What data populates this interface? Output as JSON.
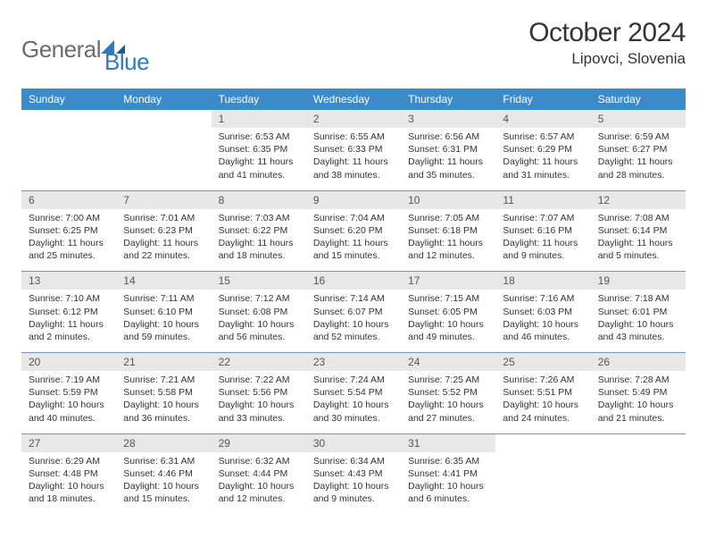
{
  "brand": {
    "left": "General",
    "right": "Blue"
  },
  "title": "October 2024",
  "location": "Lipovci, Slovenia",
  "colors": {
    "header_bg": "#3b8bc8",
    "header_fg": "#ffffff",
    "daynum_bg": "#e8e8e8",
    "week_sep": "#6b9bc8",
    "logo_gray": "#6b6b6b",
    "logo_blue": "#2b7cc0",
    "text": "#333333",
    "page_bg": "#ffffff"
  },
  "typography": {
    "title_fontsize": 30,
    "location_fontsize": 17,
    "dow_fontsize": 12,
    "daynum_fontsize": 12,
    "detail_fontsize": 10.5,
    "logo_fontsize": 26,
    "family": "Arial"
  },
  "layout": {
    "columns": 7,
    "rows": 5,
    "first_weekday": "Sunday"
  },
  "days_of_week": [
    "Sunday",
    "Monday",
    "Tuesday",
    "Wednesday",
    "Thursday",
    "Friday",
    "Saturday"
  ],
  "weeks": [
    [
      null,
      null,
      {
        "n": "1",
        "sr": "Sunrise: 6:53 AM",
        "ss": "Sunset: 6:35 PM",
        "dl": "Daylight: 11 hours and 41 minutes."
      },
      {
        "n": "2",
        "sr": "Sunrise: 6:55 AM",
        "ss": "Sunset: 6:33 PM",
        "dl": "Daylight: 11 hours and 38 minutes."
      },
      {
        "n": "3",
        "sr": "Sunrise: 6:56 AM",
        "ss": "Sunset: 6:31 PM",
        "dl": "Daylight: 11 hours and 35 minutes."
      },
      {
        "n": "4",
        "sr": "Sunrise: 6:57 AM",
        "ss": "Sunset: 6:29 PM",
        "dl": "Daylight: 11 hours and 31 minutes."
      },
      {
        "n": "5",
        "sr": "Sunrise: 6:59 AM",
        "ss": "Sunset: 6:27 PM",
        "dl": "Daylight: 11 hours and 28 minutes."
      }
    ],
    [
      {
        "n": "6",
        "sr": "Sunrise: 7:00 AM",
        "ss": "Sunset: 6:25 PM",
        "dl": "Daylight: 11 hours and 25 minutes."
      },
      {
        "n": "7",
        "sr": "Sunrise: 7:01 AM",
        "ss": "Sunset: 6:23 PM",
        "dl": "Daylight: 11 hours and 22 minutes."
      },
      {
        "n": "8",
        "sr": "Sunrise: 7:03 AM",
        "ss": "Sunset: 6:22 PM",
        "dl": "Daylight: 11 hours and 18 minutes."
      },
      {
        "n": "9",
        "sr": "Sunrise: 7:04 AM",
        "ss": "Sunset: 6:20 PM",
        "dl": "Daylight: 11 hours and 15 minutes."
      },
      {
        "n": "10",
        "sr": "Sunrise: 7:05 AM",
        "ss": "Sunset: 6:18 PM",
        "dl": "Daylight: 11 hours and 12 minutes."
      },
      {
        "n": "11",
        "sr": "Sunrise: 7:07 AM",
        "ss": "Sunset: 6:16 PM",
        "dl": "Daylight: 11 hours and 9 minutes."
      },
      {
        "n": "12",
        "sr": "Sunrise: 7:08 AM",
        "ss": "Sunset: 6:14 PM",
        "dl": "Daylight: 11 hours and 5 minutes."
      }
    ],
    [
      {
        "n": "13",
        "sr": "Sunrise: 7:10 AM",
        "ss": "Sunset: 6:12 PM",
        "dl": "Daylight: 11 hours and 2 minutes."
      },
      {
        "n": "14",
        "sr": "Sunrise: 7:11 AM",
        "ss": "Sunset: 6:10 PM",
        "dl": "Daylight: 10 hours and 59 minutes."
      },
      {
        "n": "15",
        "sr": "Sunrise: 7:12 AM",
        "ss": "Sunset: 6:08 PM",
        "dl": "Daylight: 10 hours and 56 minutes."
      },
      {
        "n": "16",
        "sr": "Sunrise: 7:14 AM",
        "ss": "Sunset: 6:07 PM",
        "dl": "Daylight: 10 hours and 52 minutes."
      },
      {
        "n": "17",
        "sr": "Sunrise: 7:15 AM",
        "ss": "Sunset: 6:05 PM",
        "dl": "Daylight: 10 hours and 49 minutes."
      },
      {
        "n": "18",
        "sr": "Sunrise: 7:16 AM",
        "ss": "Sunset: 6:03 PM",
        "dl": "Daylight: 10 hours and 46 minutes."
      },
      {
        "n": "19",
        "sr": "Sunrise: 7:18 AM",
        "ss": "Sunset: 6:01 PM",
        "dl": "Daylight: 10 hours and 43 minutes."
      }
    ],
    [
      {
        "n": "20",
        "sr": "Sunrise: 7:19 AM",
        "ss": "Sunset: 5:59 PM",
        "dl": "Daylight: 10 hours and 40 minutes."
      },
      {
        "n": "21",
        "sr": "Sunrise: 7:21 AM",
        "ss": "Sunset: 5:58 PM",
        "dl": "Daylight: 10 hours and 36 minutes."
      },
      {
        "n": "22",
        "sr": "Sunrise: 7:22 AM",
        "ss": "Sunset: 5:56 PM",
        "dl": "Daylight: 10 hours and 33 minutes."
      },
      {
        "n": "23",
        "sr": "Sunrise: 7:24 AM",
        "ss": "Sunset: 5:54 PM",
        "dl": "Daylight: 10 hours and 30 minutes."
      },
      {
        "n": "24",
        "sr": "Sunrise: 7:25 AM",
        "ss": "Sunset: 5:52 PM",
        "dl": "Daylight: 10 hours and 27 minutes."
      },
      {
        "n": "25",
        "sr": "Sunrise: 7:26 AM",
        "ss": "Sunset: 5:51 PM",
        "dl": "Daylight: 10 hours and 24 minutes."
      },
      {
        "n": "26",
        "sr": "Sunrise: 7:28 AM",
        "ss": "Sunset: 5:49 PM",
        "dl": "Daylight: 10 hours and 21 minutes."
      }
    ],
    [
      {
        "n": "27",
        "sr": "Sunrise: 6:29 AM",
        "ss": "Sunset: 4:48 PM",
        "dl": "Daylight: 10 hours and 18 minutes."
      },
      {
        "n": "28",
        "sr": "Sunrise: 6:31 AM",
        "ss": "Sunset: 4:46 PM",
        "dl": "Daylight: 10 hours and 15 minutes."
      },
      {
        "n": "29",
        "sr": "Sunrise: 6:32 AM",
        "ss": "Sunset: 4:44 PM",
        "dl": "Daylight: 10 hours and 12 minutes."
      },
      {
        "n": "30",
        "sr": "Sunrise: 6:34 AM",
        "ss": "Sunset: 4:43 PM",
        "dl": "Daylight: 10 hours and 9 minutes."
      },
      {
        "n": "31",
        "sr": "Sunrise: 6:35 AM",
        "ss": "Sunset: 4:41 PM",
        "dl": "Daylight: 10 hours and 6 minutes."
      },
      null,
      null
    ]
  ]
}
